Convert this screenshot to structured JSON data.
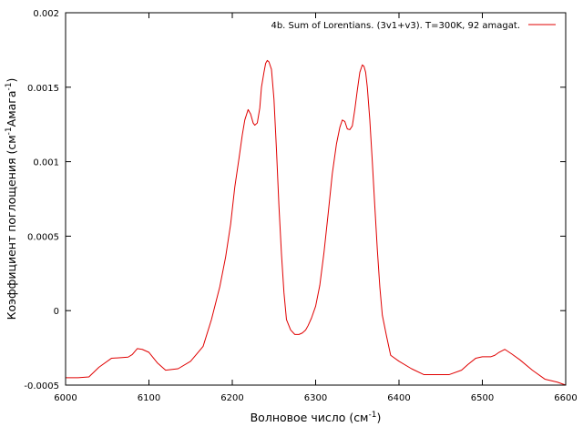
{
  "chart_data": {
    "type": "line",
    "title": "",
    "xlabel": "Волновое число (см",
    "xlabel_sup": "-1",
    "xlabel_end": ")",
    "ylabel": "Коэффициент поглощения (см",
    "ylabel_sup1": "-1",
    "ylabel_mid": "Амага",
    "ylabel_sup2": "-1",
    "ylabel_end": ")",
    "xlim": [
      6000,
      6600
    ],
    "ylim": [
      -0.0005,
      0.002
    ],
    "grid": false,
    "legend_position": "top-right",
    "x_ticks": [
      6000,
      6100,
      6200,
      6300,
      6400,
      6500,
      6600
    ],
    "x_tick_labels": [
      "6000",
      "6100",
      "6200",
      "6300",
      "6400",
      "6500",
      "6600"
    ],
    "y_ticks": [
      -0.0005,
      0,
      0.0005,
      0.001,
      0.0015,
      0.002
    ],
    "y_tick_labels": [
      "-0.0005",
      "0",
      "0.0005",
      "0.001",
      "0.0015",
      "0.002"
    ],
    "series": [
      {
        "name": "4b. Sum of Lorentians. (3v1+v3). T=300K, 92 amagat.",
        "color": "#e00000",
        "x": [
          6000,
          6015,
          6028,
          6040,
          6055,
          6068,
          6075,
          6080,
          6086,
          6092,
          6100,
          6110,
          6120,
          6135,
          6150,
          6165,
          6175,
          6185,
          6192,
          6198,
          6203,
          6208,
          6212,
          6215,
          6219,
          6222,
          6225,
          6227,
          6230,
          6233,
          6235,
          6238,
          6240,
          6242,
          6244,
          6247,
          6250,
          6253,
          6256,
          6259,
          6262,
          6265,
          6270,
          6275,
          6280,
          6284,
          6288,
          6291,
          6295,
          6300,
          6305,
          6310,
          6315,
          6320,
          6325,
          6329,
          6332,
          6335,
          6338,
          6341,
          6344,
          6347,
          6350,
          6353,
          6356,
          6358,
          6360,
          6362,
          6365,
          6368,
          6371,
          6374,
          6377,
          6380,
          6385,
          6390,
          6400,
          6415,
          6430,
          6445,
          6460,
          6475,
          6483,
          6492,
          6500,
          6510,
          6515,
          6520,
          6527,
          6535,
          6545,
          6560,
          6575,
          6590,
          6600
        ],
        "y": [
          -0.00045,
          -0.00045,
          -0.000445,
          -0.00038,
          -0.00032,
          -0.000315,
          -0.000312,
          -0.000295,
          -0.000255,
          -0.00026,
          -0.00028,
          -0.00035,
          -0.0004,
          -0.00039,
          -0.00034,
          -0.00024,
          -6e-05,
          0.00016,
          0.00036,
          0.00058,
          0.00083,
          0.00102,
          0.00118,
          0.00128,
          0.00135,
          0.00132,
          0.00126,
          0.001245,
          0.00126,
          0.00136,
          0.0015,
          0.0016,
          0.00166,
          0.00168,
          0.00167,
          0.00162,
          0.00142,
          0.00108,
          0.0007,
          0.00038,
          0.00012,
          -6e-05,
          -0.00013,
          -0.00016,
          -0.00016,
          -0.00015,
          -0.00013,
          -0.0001,
          -5e-05,
          3e-05,
          0.00017,
          0.00039,
          0.00065,
          0.00092,
          0.00112,
          0.00123,
          0.00128,
          0.00127,
          0.00122,
          0.001215,
          0.00124,
          0.00135,
          0.00148,
          0.0016,
          0.00165,
          0.00164,
          0.0016,
          0.0015,
          0.00128,
          0.001,
          0.0007,
          0.00041,
          0.00016,
          -3e-05,
          -0.00017,
          -0.0003,
          -0.00034,
          -0.00039,
          -0.00043,
          -0.00043,
          -0.00043,
          -0.0004,
          -0.00036,
          -0.00032,
          -0.00031,
          -0.00031,
          -0.0003,
          -0.00028,
          -0.00026,
          -0.00029,
          -0.00033,
          -0.0004,
          -0.00046,
          -0.00048,
          -0.0005
        ]
      }
    ]
  }
}
